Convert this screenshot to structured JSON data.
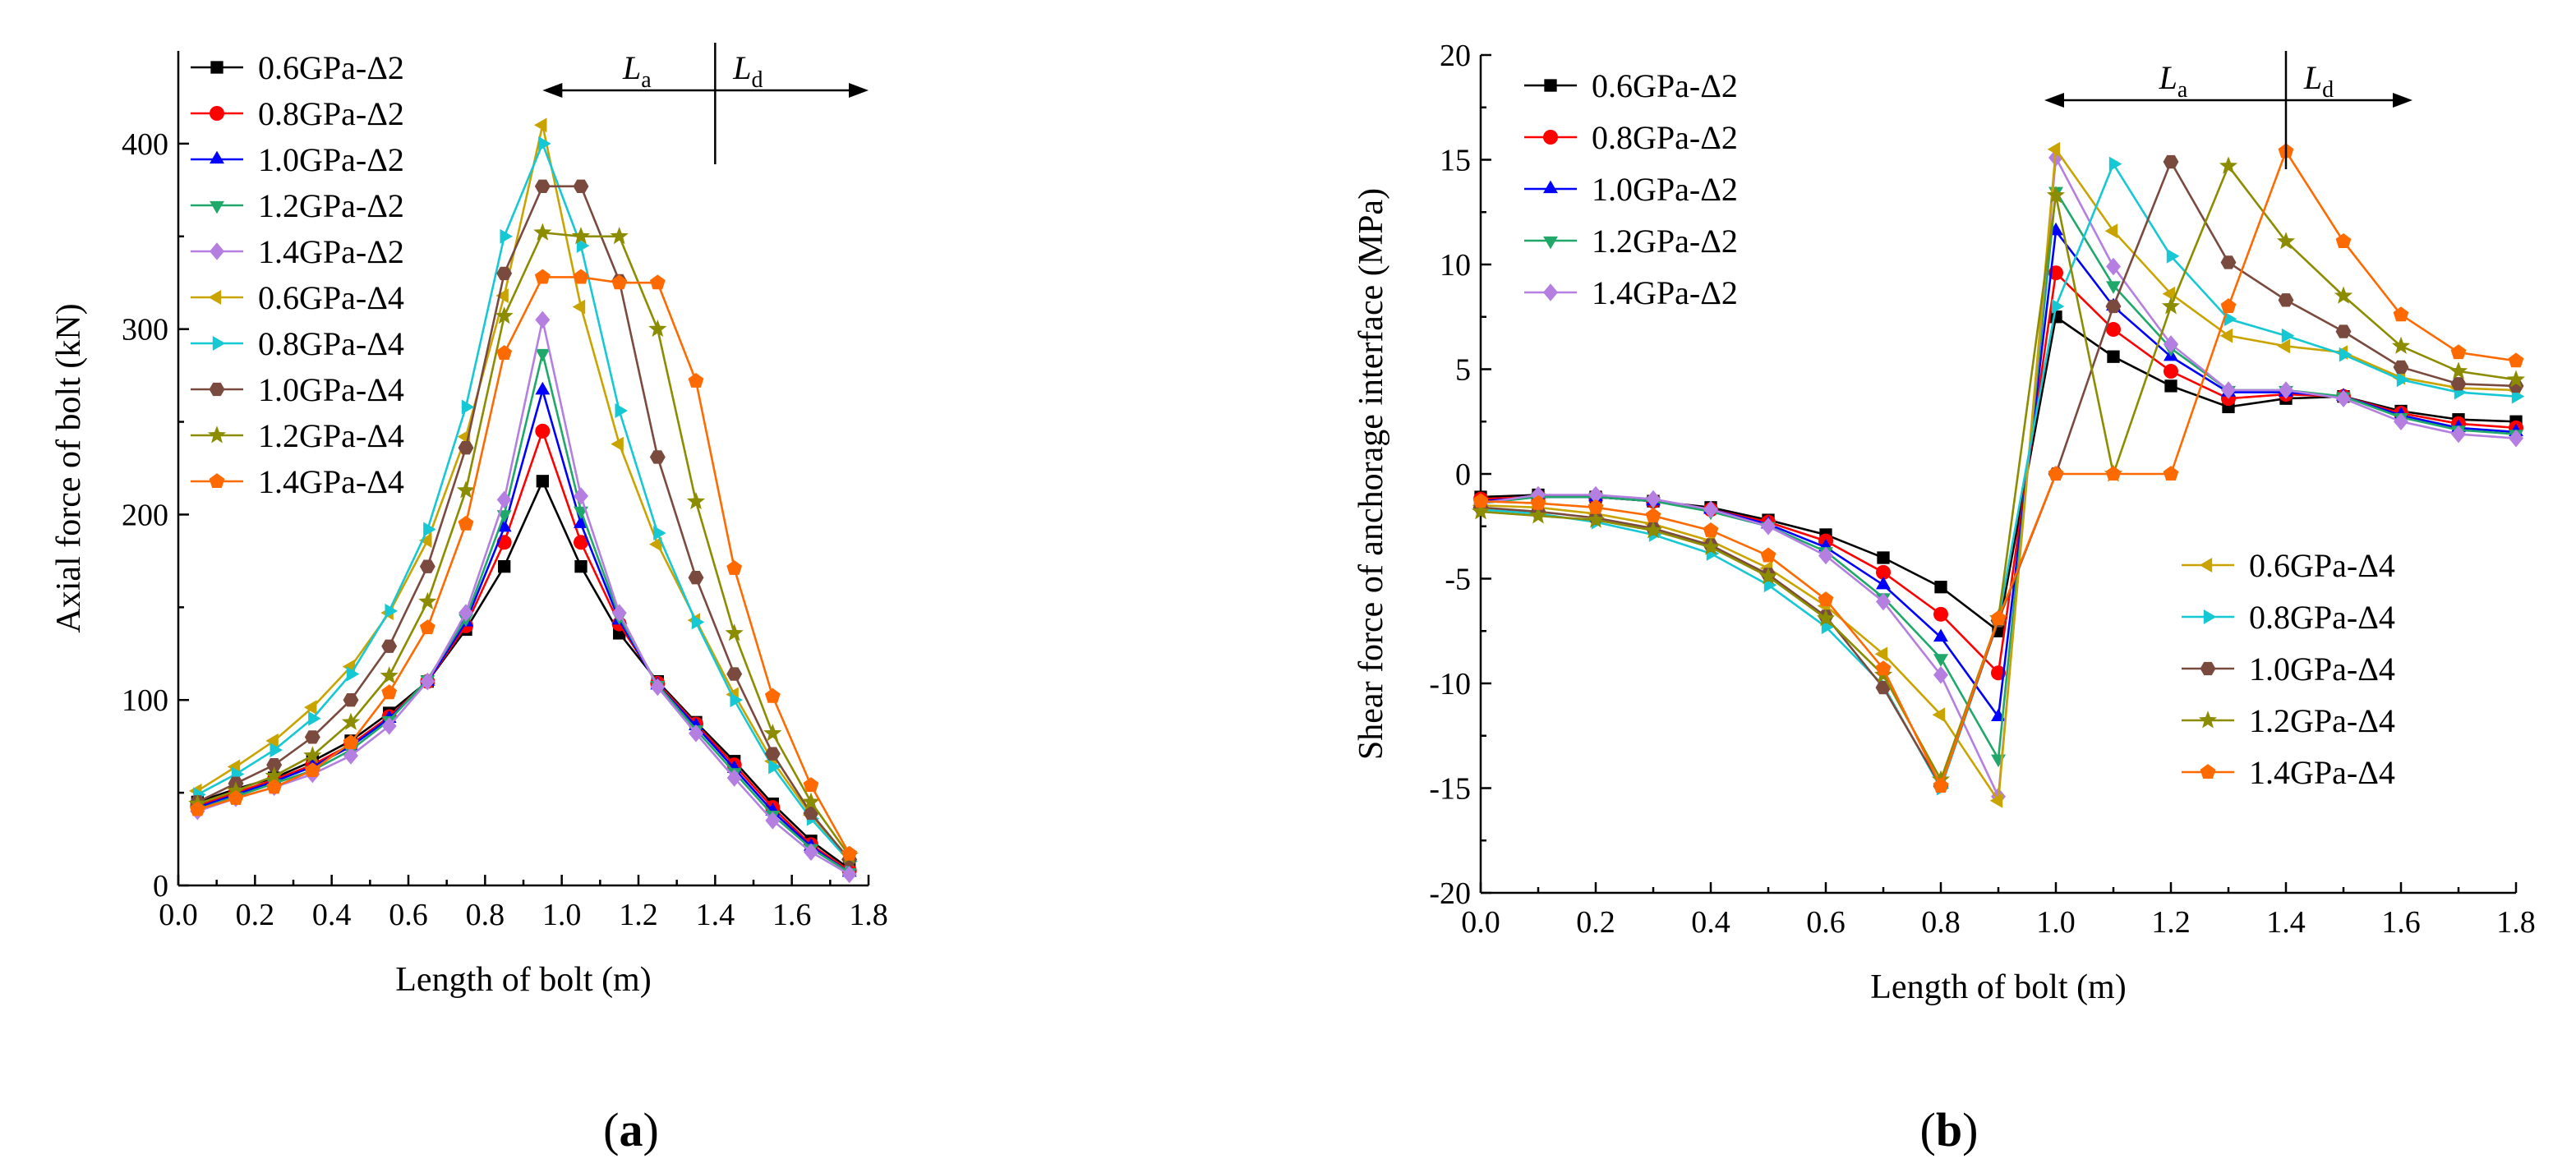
{
  "colors": {
    "0.6GPa-Δ2": "#000000",
    "0.8GPa-Δ2": "#ff0000",
    "1.0GPa-Δ2": "#0000ff",
    "1.2GPa-Δ2": "#1fa86a",
    "1.4GPa-Δ2": "#b47fe0",
    "0.6GPa-Δ4": "#c9a400",
    "0.8GPa-Δ4": "#16c8d4",
    "1.0GPa-Δ4": "#7a4a3e",
    "1.2GPa-Δ4": "#8c8c00",
    "1.4GPa-Δ4": "#ff6a00"
  },
  "markers": {
    "0.6GPa-Δ2": "square",
    "0.8GPa-Δ2": "circle",
    "1.0GPa-Δ2": "triangle-up",
    "1.2GPa-Δ2": "triangle-down",
    "1.4GPa-Δ2": "diamond",
    "0.6GPa-Δ4": "triangle-left",
    "0.8GPa-Δ4": "triangle-right",
    "1.0GPa-Δ4": "hexagon",
    "1.2GPa-Δ4": "star",
    "1.4GPa-Δ4": "pentagon"
  },
  "chart_data": [
    {
      "panel_label": "a",
      "type": "line",
      "xlabel": "Length of bolt (m)",
      "ylabel": "Axial force of bolt (kN)",
      "xlim": [
        0.0,
        1.8
      ],
      "ylim": [
        0,
        450
      ],
      "xticks": [
        "0.0",
        "0.2",
        "0.4",
        "0.6",
        "0.8",
        "1.0",
        "1.2",
        "1.4",
        "1.6",
        "1.8"
      ],
      "yticks": [
        "0",
        "100",
        "200",
        "300",
        "400"
      ],
      "grid": false,
      "legend_position": "top-left",
      "annotation": {
        "La": "L",
        "La_sub": "a",
        "Ld": "L",
        "Ld_sub": "d",
        "divider_x": 1.4,
        "arrow_from_x": 0.95,
        "arrow_to_x": 1.8
      },
      "x": [
        0.05,
        0.15,
        0.25,
        0.35,
        0.45,
        0.55,
        0.65,
        0.75,
        0.85,
        0.95,
        1.05,
        1.15,
        1.25,
        1.35,
        1.45,
        1.55,
        1.65,
        1.75
      ],
      "series": [
        {
          "name": "0.6GPa-Δ2",
          "values": [
            45,
            52,
            58,
            67,
            78,
            93,
            110,
            138,
            172,
            218,
            172,
            136,
            110,
            88,
            67,
            44,
            24,
            9
          ]
        },
        {
          "name": "0.8GPa-Δ2",
          "values": [
            43,
            50,
            57,
            65,
            76,
            91,
            110,
            140,
            185,
            245,
            185,
            141,
            109,
            87,
            65,
            42,
            22,
            8
          ]
        },
        {
          "name": "1.0GPa-Δ2",
          "values": [
            42,
            49,
            56,
            64,
            75,
            90,
            110,
            142,
            193,
            267,
            195,
            143,
            108,
            86,
            63,
            40,
            21,
            7
          ]
        },
        {
          "name": "1.2GPa-Δ2",
          "values": [
            41,
            48,
            55,
            62,
            73,
            89,
            111,
            144,
            200,
            287,
            202,
            145,
            108,
            84,
            61,
            38,
            20,
            7
          ]
        },
        {
          "name": "1.4GPa-Δ2",
          "values": [
            40,
            47,
            53,
            60,
            70,
            86,
            110,
            147,
            208,
            305,
            210,
            147,
            107,
            82,
            58,
            35,
            18,
            6
          ]
        },
        {
          "name": "0.6GPa-Δ4",
          "values": [
            51,
            64,
            78,
            96,
            118,
            147,
            186,
            242,
            318,
            410,
            312,
            238,
            184,
            143,
            103,
            67,
            38,
            14
          ]
        },
        {
          "name": "0.8GPa-Δ4",
          "values": [
            49,
            60,
            73,
            90,
            114,
            148,
            192,
            258,
            350,
            400,
            345,
            256,
            190,
            142,
            100,
            64,
            36,
            13
          ]
        },
        {
          "name": "1.0GPa-Δ4",
          "values": [
            45,
            55,
            65,
            80,
            100,
            129,
            172,
            236,
            330,
            377,
            377,
            326,
            231,
            166,
            114,
            71,
            39,
            14
          ]
        },
        {
          "name": "1.2GPa-Δ4",
          "values": [
            44,
            51,
            59,
            70,
            88,
            113,
            153,
            213,
            307,
            352,
            350,
            350,
            300,
            207,
            136,
            82,
            45,
            16
          ]
        },
        {
          "name": "1.4GPa-Δ4",
          "values": [
            41,
            47,
            53,
            62,
            77,
            104,
            139,
            195,
            287,
            328,
            328,
            325,
            325,
            272,
            171,
            102,
            54,
            17
          ]
        }
      ]
    },
    {
      "panel_label": "b",
      "type": "line",
      "xlabel": "Length of bolt (m)",
      "ylabel": "Shear force of anchorage interface (MPa)",
      "xlim": [
        0.0,
        1.8
      ],
      "ylim": [
        -20,
        20
      ],
      "xticks": [
        "0.0",
        "0.2",
        "0.4",
        "0.6",
        "0.8",
        "1.0",
        "1.2",
        "1.4",
        "1.6",
        "1.8"
      ],
      "yticks": [
        "-20",
        "-15",
        "-10",
        "-5",
        "0",
        "5",
        "10",
        "15",
        "20"
      ],
      "grid": false,
      "legend_position": "top-left and right-middle",
      "annotation": {
        "La": "L",
        "La_sub": "a",
        "Ld": "L",
        "Ld_sub": "d",
        "divider_x": 1.4,
        "arrow_from_x": 0.98,
        "arrow_to_x": 1.62
      },
      "x": [
        0.0,
        0.1,
        0.2,
        0.3,
        0.4,
        0.5,
        0.6,
        0.7,
        0.8,
        0.9,
        1.0,
        1.1,
        1.2,
        1.3,
        1.4,
        1.5,
        1.6,
        1.7,
        1.8
      ],
      "series": [
        {
          "name": "0.6GPa-Δ2",
          "values": [
            -1.1,
            -1.0,
            -1.1,
            -1.3,
            -1.6,
            -2.2,
            -2.9,
            -4.0,
            -5.4,
            -7.5,
            7.5,
            5.6,
            4.2,
            3.2,
            3.6,
            3.7,
            3.0,
            2.6,
            2.5
          ]
        },
        {
          "name": "0.8GPa-Δ2",
          "values": [
            -1.2,
            -1.1,
            -1.1,
            -1.3,
            -1.7,
            -2.3,
            -3.2,
            -4.7,
            -6.7,
            -9.5,
            9.6,
            6.9,
            4.9,
            3.6,
            3.8,
            3.7,
            2.9,
            2.4,
            2.2
          ]
        },
        {
          "name": "1.0GPa-Δ2",
          "values": [
            -1.3,
            -1.1,
            -1.1,
            -1.3,
            -1.7,
            -2.4,
            -3.5,
            -5.3,
            -7.8,
            -11.6,
            11.6,
            8.0,
            5.6,
            3.9,
            3.9,
            3.7,
            2.8,
            2.2,
            2.0
          ]
        },
        {
          "name": "1.2GPa-Δ2",
          "values": [
            -1.4,
            -1.1,
            -1.1,
            -1.3,
            -1.8,
            -2.5,
            -3.7,
            -5.9,
            -8.8,
            -13.6,
            13.5,
            9.0,
            6.0,
            4.0,
            4.0,
            3.7,
            2.7,
            2.1,
            1.9
          ]
        },
        {
          "name": "1.4GPa-Δ2",
          "values": [
            -1.4,
            -1.0,
            -1.0,
            -1.2,
            -1.7,
            -2.5,
            -3.9,
            -6.1,
            -9.6,
            -15.4,
            15.1,
            9.9,
            6.2,
            4.0,
            4.0,
            3.6,
            2.5,
            1.9,
            1.7
          ]
        },
        {
          "name": "0.6GPa-Δ4",
          "values": [
            -1.5,
            -1.6,
            -1.9,
            -2.4,
            -3.2,
            -4.5,
            -6.3,
            -8.6,
            -11.5,
            -15.6,
            15.5,
            11.6,
            8.6,
            6.6,
            6.1,
            5.8,
            4.6,
            4.1,
            4.0
          ]
        },
        {
          "name": "0.8GPa-Δ4",
          "values": [
            -1.7,
            -1.9,
            -2.3,
            -2.9,
            -3.8,
            -5.3,
            -7.3,
            -10.1,
            -15.0,
            -7.0,
            8.0,
            14.8,
            10.4,
            7.4,
            6.6,
            5.7,
            4.5,
            3.9,
            3.7
          ]
        },
        {
          "name": "1.0GPa-Δ4",
          "values": [
            -1.6,
            -1.8,
            -2.1,
            -2.6,
            -3.4,
            -4.8,
            -6.8,
            -10.2,
            -14.9,
            -7.0,
            0.0,
            8.0,
            14.9,
            10.1,
            8.3,
            6.8,
            5.1,
            4.3,
            4.2
          ]
        },
        {
          "name": "1.2GPa-Δ4",
          "values": [
            -1.8,
            -2.0,
            -2.2,
            -2.7,
            -3.5,
            -4.9,
            -6.9,
            -9.6,
            -14.6,
            -6.9,
            13.3,
            0.0,
            8.0,
            14.7,
            11.1,
            8.5,
            6.1,
            4.9,
            4.5
          ]
        },
        {
          "name": "1.4GPa-Δ4",
          "values": [
            -1.3,
            -1.4,
            -1.6,
            -2.0,
            -2.7,
            -3.9,
            -6.0,
            -9.3,
            -14.9,
            -6.9,
            0.0,
            0.0,
            0.0,
            8.0,
            15.4,
            11.1,
            7.6,
            5.8,
            5.4
          ]
        }
      ],
      "legend_groups": [
        [
          "0.6GPa-Δ2",
          "0.8GPa-Δ2",
          "1.0GPa-Δ2",
          "1.2GPa-Δ2",
          "1.4GPa-Δ2"
        ],
        [
          "0.6GPa-Δ4",
          "0.8GPa-Δ4",
          "1.0GPa-Δ4",
          "1.2GPa-Δ4",
          "1.4GPa-Δ4"
        ]
      ]
    }
  ]
}
